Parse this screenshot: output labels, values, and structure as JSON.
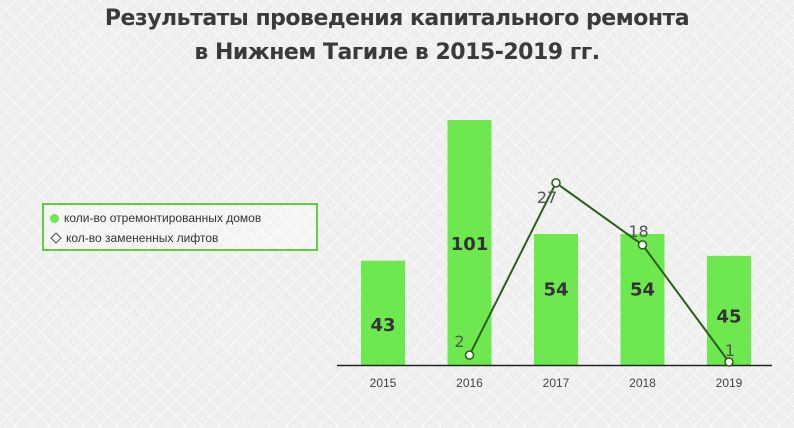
{
  "title_line1": "Результаты проведения капитального ремонта",
  "title_line2": "в Нижнем Тагиле в 2015-2019 гг.",
  "colors": {
    "bar": "#6ee84f",
    "line": "#2c5e1e",
    "title": "#3a3a3a",
    "legend_border": "#5fd13f"
  },
  "chart_data": {
    "type": "bar",
    "categories": [
      "2015",
      "2016",
      "2017",
      "2018",
      "2019"
    ],
    "series": [
      {
        "name": "коли-во отремонтированных домов",
        "type": "bar",
        "values": [
          43,
          101,
          54,
          54,
          45
        ]
      },
      {
        "name": "кол-во замененных лифтов",
        "type": "line",
        "values": [
          null,
          2,
          27,
          18,
          1
        ]
      }
    ],
    "bar_ylim": [
      0,
      101
    ],
    "line_ylim": [
      0,
      28
    ],
    "grid": false,
    "legend_position": "left"
  }
}
